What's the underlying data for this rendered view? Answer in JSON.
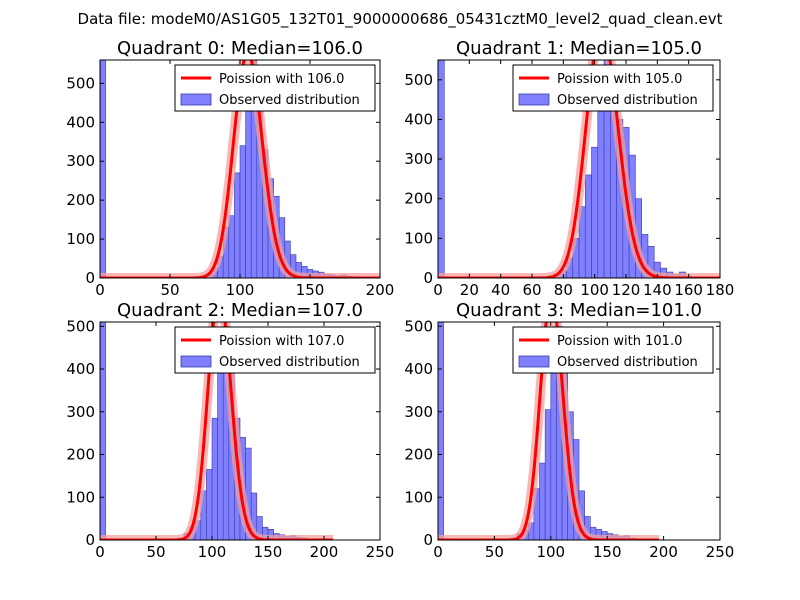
{
  "figure_title": "Data file: modeM0/AS1G05_132T01_9000000686_05431cztM0_level2_quad_clean.evt",
  "colors": {
    "bars": "#8080ff",
    "bar_edge": "#3a3aa8",
    "fit_line": "#ff0000",
    "fit_glow": "#f4a0a0",
    "frame": "#000000"
  },
  "chart_data": [
    {
      "type": "bar",
      "title": "Quadrant 0: Median=106.0",
      "median": 106.0,
      "xlim": [
        0,
        200
      ],
      "ylim": [
        0,
        560
      ],
      "xticks": [
        0,
        50,
        100,
        150,
        200
      ],
      "yticks": [
        0,
        100,
        200,
        300,
        400,
        500
      ],
      "bin_width": 4,
      "bins_x": [
        0,
        72,
        76,
        80,
        84,
        88,
        92,
        96,
        100,
        104,
        108,
        112,
        116,
        120,
        124,
        128,
        132,
        136,
        140,
        144,
        148,
        152,
        156,
        160,
        164,
        168,
        172,
        176,
        180,
        184
      ],
      "bins_y": [
        560,
        5,
        10,
        25,
        55,
        130,
        160,
        270,
        340,
        440,
        560,
        460,
        330,
        255,
        210,
        155,
        95,
        60,
        40,
        30,
        22,
        18,
        15,
        10,
        8,
        5,
        8,
        4,
        3,
        2
      ],
      "legend": [
        "Poission with 106.0",
        "Observed distribution"
      ]
    },
    {
      "type": "bar",
      "title": "Quadrant 1: Median=105.0",
      "median": 105.0,
      "xlim": [
        0,
        180
      ],
      "ylim": [
        0,
        550
      ],
      "xticks": [
        0,
        20,
        40,
        60,
        80,
        100,
        120,
        140,
        160,
        180
      ],
      "yticks": [
        0,
        100,
        200,
        300,
        400,
        500
      ],
      "bin_width": 4,
      "bins_x": [
        0,
        70,
        74,
        78,
        82,
        86,
        90,
        94,
        98,
        102,
        106,
        110,
        114,
        118,
        122,
        126,
        130,
        134,
        138,
        142,
        146,
        150,
        154,
        158
      ],
      "bins_y": [
        550,
        5,
        10,
        20,
        50,
        100,
        180,
        260,
        330,
        440,
        550,
        500,
        400,
        380,
        310,
        200,
        110,
        80,
        40,
        25,
        15,
        8,
        15,
        5
      ],
      "legend": [
        "Poission with 105.0",
        "Observed distribution"
      ]
    },
    {
      "type": "bar",
      "title": "Quadrant 2: Median=107.0",
      "median": 107.0,
      "xlim": [
        0,
        250
      ],
      "ylim": [
        0,
        510
      ],
      "xticks": [
        0,
        50,
        100,
        150,
        200,
        250
      ],
      "yticks": [
        0,
        100,
        200,
        300,
        400,
        500
      ],
      "bin_width": 5,
      "bins_x": [
        0,
        70,
        75,
        80,
        85,
        90,
        95,
        100,
        105,
        110,
        115,
        120,
        125,
        130,
        135,
        140,
        145,
        150,
        155,
        160,
        165,
        170,
        175,
        180,
        190
      ],
      "bins_y": [
        510,
        5,
        15,
        30,
        45,
        115,
        165,
        285,
        390,
        500,
        425,
        285,
        240,
        215,
        110,
        55,
        30,
        25,
        15,
        12,
        8,
        10,
        6,
        5,
        3
      ],
      "legend": [
        "Poission with 107.0",
        "Observed distribution"
      ]
    },
    {
      "type": "bar",
      "title": "Quadrant 3: Median=101.0",
      "median": 101.0,
      "xlim": [
        0,
        250
      ],
      "ylim": [
        0,
        510
      ],
      "xticks": [
        0,
        50,
        100,
        150,
        200,
        250
      ],
      "yticks": [
        0,
        100,
        200,
        300,
        400,
        500
      ],
      "bin_width": 5,
      "bins_x": [
        0,
        65,
        70,
        75,
        80,
        85,
        90,
        95,
        100,
        105,
        110,
        115,
        120,
        125,
        130,
        135,
        140,
        145,
        150,
        155,
        160,
        165,
        170
      ],
      "bins_y": [
        510,
        5,
        15,
        25,
        40,
        120,
        180,
        305,
        400,
        500,
        435,
        300,
        235,
        115,
        55,
        30,
        25,
        20,
        15,
        12,
        8,
        10,
        4
      ],
      "legend": [
        "Poission with 101.0",
        "Observed distribution"
      ]
    }
  ]
}
